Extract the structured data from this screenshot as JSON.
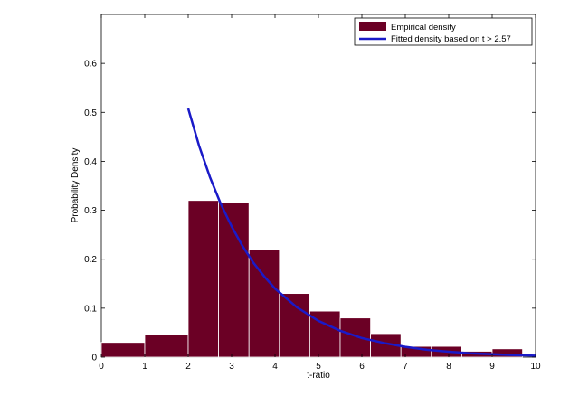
{
  "chart_data": {
    "type": "bar",
    "xlabel": "t-ratio",
    "ylabel": "Probability Density",
    "xlim": [
      0,
      10
    ],
    "ylim": [
      0,
      0.7
    ],
    "x_ticks": [
      0,
      1,
      2,
      3,
      4,
      5,
      6,
      7,
      8,
      9,
      10
    ],
    "y_ticks": [
      0,
      0.1,
      0.2,
      0.3,
      0.4,
      0.5,
      0.6
    ],
    "x_tick_labels": [
      "0",
      "1",
      "2",
      "3",
      "4",
      "5",
      "6",
      "7",
      "8",
      "9",
      "10"
    ],
    "y_tick_labels": [
      "0",
      "0.1",
      "0.2",
      "0.3",
      "0.4",
      "0.5",
      "0.6"
    ],
    "grid": false,
    "legend_position": "top-right",
    "series": [
      {
        "name": "Empirical density",
        "kind": "histogram",
        "color": "#6b0025",
        "edge_color": "#ffffff",
        "bins": [
          {
            "x0": 0.0,
            "x1": 1.0,
            "value": 0.03
          },
          {
            "x0": 1.0,
            "x1": 2.0,
            "value": 0.046
          },
          {
            "x0": 2.0,
            "x1": 2.7,
            "value": 0.32
          },
          {
            "x0": 2.7,
            "x1": 3.4,
            "value": 0.315
          },
          {
            "x0": 3.4,
            "x1": 4.1,
            "value": 0.22
          },
          {
            "x0": 4.1,
            "x1": 4.8,
            "value": 0.13
          },
          {
            "x0": 4.8,
            "x1": 5.5,
            "value": 0.094
          },
          {
            "x0": 5.5,
            "x1": 6.2,
            "value": 0.08
          },
          {
            "x0": 6.2,
            "x1": 6.9,
            "value": 0.048
          },
          {
            "x0": 6.9,
            "x1": 7.6,
            "value": 0.022
          },
          {
            "x0": 7.6,
            "x1": 8.3,
            "value": 0.022
          },
          {
            "x0": 8.3,
            "x1": 9.0,
            "value": 0.012
          },
          {
            "x0": 9.0,
            "x1": 9.7,
            "value": 0.017
          }
        ]
      },
      {
        "name": "Fitted density based on t > 2.57",
        "kind": "line",
        "color": "#1a1ac8",
        "x": [
          2.0,
          2.25,
          2.5,
          2.75,
          3.0,
          3.25,
          3.5,
          3.75,
          4.0,
          4.5,
          5.0,
          5.5,
          6.0,
          6.5,
          7.0,
          7.5,
          8.0,
          8.5,
          9.0,
          9.5,
          10.0
        ],
        "y": [
          0.508,
          0.432,
          0.368,
          0.313,
          0.267,
          0.227,
          0.193,
          0.165,
          0.14,
          0.102,
          0.074,
          0.054,
          0.039,
          0.029,
          0.021,
          0.015,
          0.011,
          0.008,
          0.006,
          0.004,
          0.003
        ]
      }
    ]
  }
}
